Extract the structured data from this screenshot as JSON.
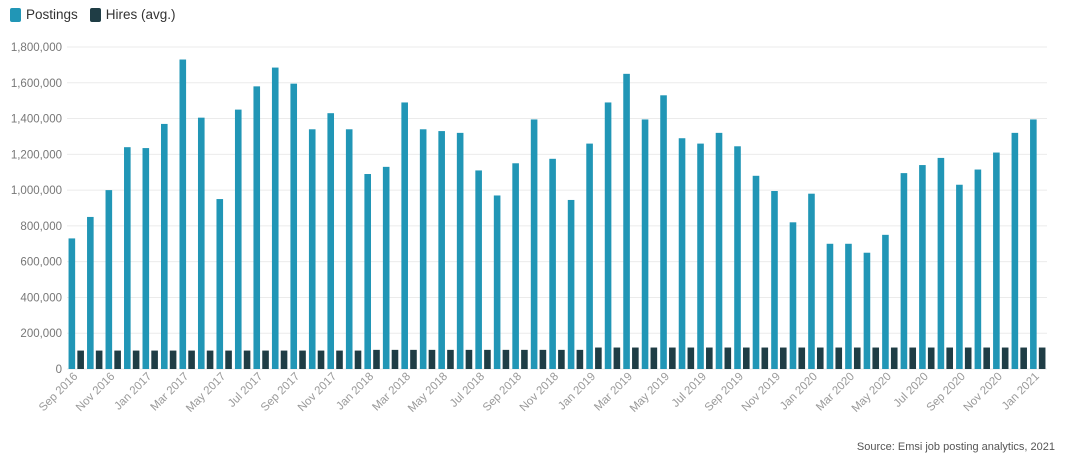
{
  "legend": {
    "postings": "Postings",
    "hires": "Hires (avg.)"
  },
  "colors": {
    "postings": "#2196b6",
    "hires": "#1f3d45",
    "grid": "#ebebeb"
  },
  "source": "Source: Emsi job posting analytics, 2021",
  "chart_data": {
    "type": "bar",
    "categories": [
      "Sep 2016",
      "Oct 2016",
      "Nov 2016",
      "Dec 2016",
      "Jan 2017",
      "Feb 2017",
      "Mar 2017",
      "Apr 2017",
      "May 2017",
      "Jun 2017",
      "Jul 2017",
      "Aug 2017",
      "Sep 2017",
      "Oct 2017",
      "Nov 2017",
      "Dec 2017",
      "Jan 2018",
      "Feb 2018",
      "Mar 2018",
      "Apr 2018",
      "May 2018",
      "Jun 2018",
      "Jul 2018",
      "Aug 2018",
      "Sep 2018",
      "Oct 2018",
      "Nov 2018",
      "Dec 2018",
      "Jan 2019",
      "Feb 2019",
      "Mar 2019",
      "Apr 2019",
      "May 2019",
      "Jun 2019",
      "Jul 2019",
      "Aug 2019",
      "Sep 2019",
      "Oct 2019",
      "Nov 2019",
      "Dec 2019",
      "Jan 2020",
      "Feb 2020",
      "Mar 2020",
      "Apr 2020",
      "May 2020",
      "Jun 2020",
      "Jul 2020",
      "Aug 2020",
      "Sep 2020",
      "Oct 2020",
      "Nov 2020",
      "Dec 2020",
      "Jan 2021"
    ],
    "tick_labels": [
      "Sep 2016",
      "Nov 2016",
      "Jan 2017",
      "Mar 2017",
      "May 2017",
      "Jul 2017",
      "Sep 2017",
      "Nov 2017",
      "Jan 2018",
      "Mar 2018",
      "May 2018",
      "Jul 2018",
      "Sep 2018",
      "Nov 2018",
      "Jan 2019",
      "Mar 2019",
      "May 2019",
      "Jul 2019",
      "Sep 2019",
      "Nov 2019",
      "Jan 2020",
      "Mar 2020",
      "May 2020",
      "Jul 2020",
      "Sep 2020",
      "Nov 2020",
      "Jan 2021"
    ],
    "series": [
      {
        "name": "Postings",
        "values": [
          730000,
          850000,
          1000000,
          1240000,
          1235000,
          1370000,
          1730000,
          1405000,
          950000,
          1450000,
          1580000,
          1685000,
          1595000,
          1340000,
          1430000,
          1340000,
          1090000,
          1130000,
          1490000,
          1340000,
          1330000,
          1320000,
          1110000,
          970000,
          1150000,
          1395000,
          1175000,
          945000,
          1260000,
          1490000,
          1650000,
          1395000,
          1530000,
          1290000,
          1260000,
          1320000,
          1245000,
          1080000,
          995000,
          820000,
          980000,
          700000,
          700000,
          650000,
          750000,
          1095000,
          1140000,
          1180000,
          1030000,
          1115000,
          1210000,
          1320000,
          1395000
        ]
      },
      {
        "name": "Hires (avg.)",
        "values": [
          103000,
          103000,
          103000,
          103000,
          103000,
          103000,
          103000,
          103000,
          103000,
          103000,
          103000,
          103000,
          103000,
          103000,
          103000,
          103000,
          107000,
          107000,
          107000,
          107000,
          107000,
          107000,
          107000,
          107000,
          107000,
          107000,
          107000,
          107000,
          120000,
          120000,
          120000,
          120000,
          120000,
          120000,
          120000,
          120000,
          120000,
          120000,
          120000,
          120000,
          120000,
          120000,
          120000,
          120000,
          120000,
          120000,
          120000,
          120000,
          120000,
          120000,
          120000,
          120000,
          120000
        ]
      }
    ],
    "ylim": [
      0,
      1800000
    ],
    "yticks": [
      "0",
      "200,000",
      "400,000",
      "600,000",
      "800,000",
      "1,000,000",
      "1,200,000",
      "1,400,000",
      "1,600,000",
      "1,800,000"
    ],
    "grid": true,
    "legend_position": "top-left"
  }
}
